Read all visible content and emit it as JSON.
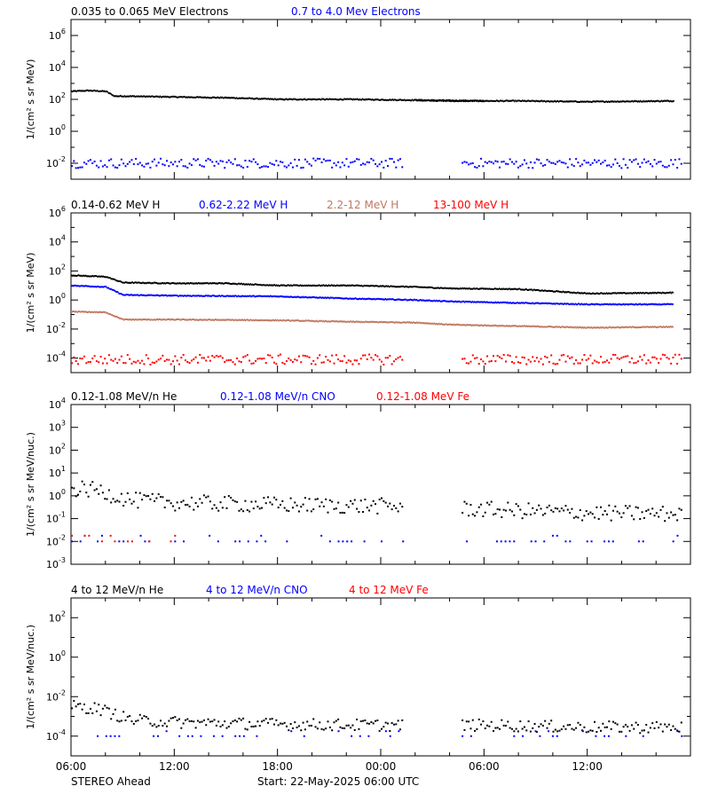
{
  "x_ticks": [
    "06:00",
    "12:00",
    "18:00",
    "00:00",
    "06:00",
    "12:00"
  ],
  "footer": {
    "left": "STEREO Ahead",
    "center": "Start: 22-May-2025 06:00 UTC"
  },
  "colors": {
    "black": "#000000",
    "blue": "#0000ff",
    "brown": "#c07860",
    "red": "#ff0000"
  },
  "chart_data": [
    {
      "type": "scatter",
      "ylabel": "1/(cm² s sr MeV)",
      "ylim_log10": [
        -3,
        7
      ],
      "y_tick_exponents": [
        -2,
        0,
        2,
        4,
        6
      ],
      "legend": [
        {
          "label": "0.035 to 0.065 MeV Electrons",
          "color": "#000000"
        },
        {
          "label": "0.7 to 4.0 Mev Electrons",
          "color": "#0000ff"
        }
      ],
      "series": [
        {
          "name": "0.035 to 0.065 MeV Electrons",
          "color": "#000000",
          "style": "band",
          "segments": [
            {
              "hours": [
                0,
                1,
                2,
                2.5,
                3,
                6,
                9,
                12,
                16.2
              ],
              "log10": [
                2.5,
                2.55,
                2.5,
                2.2,
                2.2,
                2.15,
                2.1,
                2.0,
                2.0
              ]
            },
            {
              "hours": [
                16.2,
                16.4,
                20,
                24
              ],
              "log10": [
                2.0,
                2.0,
                1.95,
                1.9
              ]
            },
            {
              "hours": [
                20,
                22,
                26,
                30,
                35
              ],
              "log10": [
                1.95,
                1.9,
                1.9,
                1.85,
                1.9
              ]
            }
          ]
        },
        {
          "name": "0.7 to 4.0 Mev Electrons",
          "color": "#0000ff",
          "style": "scatter",
          "level_log10": -2.0,
          "spread": 0.3,
          "ranges": [
            [
              0,
              19.3
            ],
            [
              22.7,
              35.5
            ]
          ]
        }
      ]
    },
    {
      "type": "scatter",
      "ylabel": "1/(cm² s sr MeV)",
      "ylim_log10": [
        -5,
        6
      ],
      "y_tick_exponents": [
        -4,
        -2,
        0,
        2,
        4,
        6
      ],
      "legend": [
        {
          "label": "0.14-0.62 MeV H",
          "color": "#000000"
        },
        {
          "label": "0.62-2.22 MeV H",
          "color": "#0000ff"
        },
        {
          "label": "2.2-12 MeV H",
          "color": "#c07860"
        },
        {
          "label": "13-100 MeV H",
          "color": "#ff0000"
        }
      ],
      "series": [
        {
          "name": "0.14-0.62 MeV H",
          "color": "#000000",
          "style": "band",
          "segments": [
            {
              "hours": [
                0,
                2,
                3,
                6,
                9,
                12,
                16.2
              ],
              "log10": [
                1.7,
                1.6,
                1.2,
                1.15,
                1.15,
                1.0,
                1.0
              ]
            },
            {
              "hours": [
                16.2,
                20,
                22,
                26,
                30,
                35
              ],
              "log10": [
                1.0,
                0.9,
                0.8,
                0.75,
                0.45,
                0.5
              ]
            }
          ]
        },
        {
          "name": "0.62-2.22 MeV H",
          "color": "#0000ff",
          "style": "band",
          "segments": [
            {
              "hours": [
                0,
                2,
                3,
                6,
                12,
                16.2
              ],
              "log10": [
                1.0,
                0.9,
                0.35,
                0.3,
                0.25,
                0.1
              ]
            },
            {
              "hours": [
                16.2,
                20,
                22,
                26,
                30,
                35
              ],
              "log10": [
                0.1,
                0.0,
                -0.1,
                -0.2,
                -0.3,
                -0.3
              ]
            }
          ]
        },
        {
          "name": "2.2-12 MeV H",
          "color": "#c07860",
          "style": "band",
          "segments": [
            {
              "hours": [
                0,
                2,
                3,
                6,
                12,
                16.2
              ],
              "log10": [
                -0.8,
                -0.85,
                -1.35,
                -1.35,
                -1.4,
                -1.5
              ]
            },
            {
              "hours": [
                16.2,
                20,
                22,
                26,
                30,
                35
              ],
              "log10": [
                -1.5,
                -1.55,
                -1.7,
                -1.8,
                -1.9,
                -1.85
              ]
            }
          ]
        },
        {
          "name": "13-100 MeV H",
          "color": "#ff0000",
          "style": "scatter",
          "level_log10": -4.1,
          "spread": 0.35,
          "ranges": [
            [
              0,
              19.3
            ],
            [
              22.7,
              35.5
            ]
          ]
        }
      ]
    },
    {
      "type": "scatter",
      "ylabel": "1/(cm² s sr MeV/nuc.)",
      "ylim_log10": [
        -3,
        4
      ],
      "y_tick_exponents": [
        -3,
        -2,
        -1,
        0,
        1,
        2,
        3,
        4
      ],
      "legend": [
        {
          "label": "0.12-1.08 MeV/n He",
          "color": "#000000"
        },
        {
          "label": "0.12-1.08 MeV/n CNO",
          "color": "#0000ff"
        },
        {
          "label": "0.12-1.08 MeV Fe",
          "color": "#ff0000"
        }
      ],
      "series": [
        {
          "name": "0.12-1.08 MeV/n He",
          "color": "#000000",
          "style": "scatter",
          "profile": {
            "hours": [
              0,
              1.5,
              2.5,
              3.5,
              6,
              12,
              18,
              24,
              30,
              35
            ],
            "log10": [
              0.3,
              0.25,
              0.0,
              -0.2,
              -0.3,
              -0.4,
              -0.45,
              -0.6,
              -0.75,
              -0.8
            ]
          },
          "spread": 0.35,
          "ranges": [
            [
              0,
              19.3
            ],
            [
              22.7,
              35.5
            ]
          ]
        },
        {
          "name": "0.12-1.08 MeV/n CNO",
          "color": "#0000ff",
          "style": "sparse",
          "level_log10": -2.0,
          "ranges": [
            [
              0,
              19.3
            ],
            [
              22.7,
              35.5
            ]
          ]
        },
        {
          "name": "0.12-1.08 MeV Fe",
          "color": "#ff0000",
          "style": "sparse",
          "level_log10": -2.0,
          "ranges": [
            [
              0,
              6.5
            ]
          ]
        }
      ]
    },
    {
      "type": "scatter",
      "ylabel": "1/(cm² s sr MeV/nuc.)",
      "ylim_log10": [
        -5,
        3
      ],
      "y_tick_exponents": [
        -4,
        -2,
        0,
        2
      ],
      "legend": [
        {
          "label": "4 to 12 MeV/n He",
          "color": "#000000"
        },
        {
          "label": "4 to 12 MeV/n CNO",
          "color": "#0000ff"
        },
        {
          "label": "4 to 12 MeV Fe",
          "color": "#ff0000"
        }
      ],
      "series": [
        {
          "name": "4 to 12 MeV/n He",
          "color": "#000000",
          "style": "scatter",
          "profile": {
            "hours": [
              0,
              1.5,
              2.5,
              3.5,
              6,
              12,
              18,
              24,
              30,
              35
            ],
            "log10": [
              -2.5,
              -2.6,
              -2.9,
              -3.2,
              -3.3,
              -3.4,
              -3.45,
              -3.45,
              -3.55,
              -3.55
            ]
          },
          "spread": 0.3,
          "ranges": [
            [
              0,
              19.3
            ],
            [
              22.7,
              35.5
            ]
          ]
        },
        {
          "name": "4 to 12 MeV/n CNO",
          "color": "#0000ff",
          "style": "sparse",
          "level_log10": -4.0,
          "ranges": [
            [
              0,
              19.3
            ],
            [
              22.7,
              35.5
            ]
          ]
        }
      ]
    }
  ]
}
